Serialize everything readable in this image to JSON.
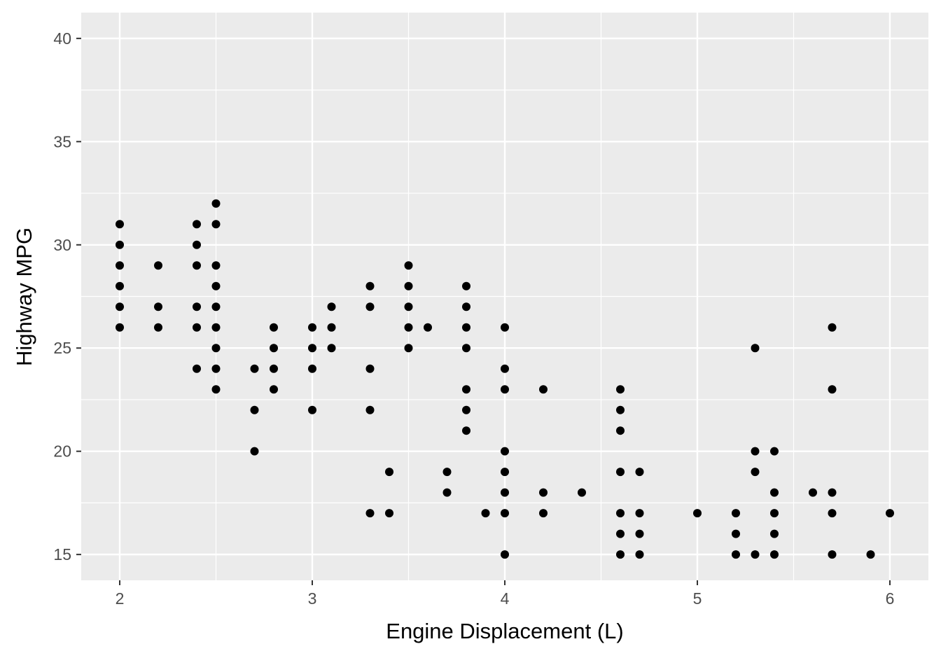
{
  "chart_data": {
    "type": "scatter",
    "title": "",
    "xlabel": "Engine Displacement (L)",
    "ylabel": "Highway MPG",
    "xlim": [
      1.8,
      6.2
    ],
    "ylim": [
      13.75,
      41.25
    ],
    "x_ticks": [
      2,
      3,
      4,
      5,
      6
    ],
    "y_ticks": [
      15,
      20,
      25,
      30,
      35,
      40
    ],
    "x_tick_labels": [
      "2",
      "3",
      "4",
      "5",
      "6"
    ],
    "y_tick_labels": [
      "15",
      "20",
      "25",
      "30",
      "35",
      "40"
    ],
    "grid": true,
    "legend": "none",
    "colors": {
      "panel": "#ebebeb",
      "grid": "#ffffff",
      "point": "#000000",
      "tick": "#333333"
    },
    "points": [
      [
        2.0,
        31
      ],
      [
        2.0,
        30
      ],
      [
        2.0,
        29
      ],
      [
        2.0,
        28
      ],
      [
        2.0,
        27
      ],
      [
        2.0,
        26
      ],
      [
        2.2,
        29
      ],
      [
        2.2,
        27
      ],
      [
        2.2,
        26
      ],
      [
        2.4,
        31
      ],
      [
        2.4,
        30
      ],
      [
        2.4,
        29
      ],
      [
        2.4,
        27
      ],
      [
        2.4,
        26
      ],
      [
        2.4,
        24
      ],
      [
        2.5,
        32
      ],
      [
        2.5,
        31
      ],
      [
        2.5,
        29
      ],
      [
        2.5,
        28
      ],
      [
        2.5,
        27
      ],
      [
        2.5,
        26
      ],
      [
        2.5,
        25
      ],
      [
        2.5,
        24
      ],
      [
        2.5,
        23
      ],
      [
        2.7,
        24
      ],
      [
        2.7,
        22
      ],
      [
        2.7,
        20
      ],
      [
        2.8,
        26
      ],
      [
        2.8,
        25
      ],
      [
        2.8,
        24
      ],
      [
        2.8,
        23
      ],
      [
        3.0,
        26
      ],
      [
        3.0,
        25
      ],
      [
        3.0,
        24
      ],
      [
        3.0,
        22
      ],
      [
        3.1,
        27
      ],
      [
        3.1,
        26
      ],
      [
        3.1,
        25
      ],
      [
        3.3,
        28
      ],
      [
        3.3,
        27
      ],
      [
        3.3,
        24
      ],
      [
        3.3,
        22
      ],
      [
        3.3,
        17
      ],
      [
        3.4,
        19
      ],
      [
        3.4,
        17
      ],
      [
        3.5,
        29
      ],
      [
        3.5,
        28
      ],
      [
        3.5,
        27
      ],
      [
        3.5,
        26
      ],
      [
        3.5,
        25
      ],
      [
        3.6,
        26
      ],
      [
        3.7,
        19
      ],
      [
        3.7,
        18
      ],
      [
        3.8,
        28
      ],
      [
        3.8,
        27
      ],
      [
        3.8,
        26
      ],
      [
        3.8,
        25
      ],
      [
        3.8,
        23
      ],
      [
        3.8,
        22
      ],
      [
        3.8,
        21
      ],
      [
        3.9,
        17
      ],
      [
        4.0,
        26
      ],
      [
        4.0,
        24
      ],
      [
        4.0,
        23
      ],
      [
        4.0,
        20
      ],
      [
        4.0,
        19
      ],
      [
        4.0,
        18
      ],
      [
        4.0,
        17
      ],
      [
        4.0,
        15
      ],
      [
        4.2,
        23
      ],
      [
        4.2,
        18
      ],
      [
        4.2,
        17
      ],
      [
        4.4,
        18
      ],
      [
        4.6,
        23
      ],
      [
        4.6,
        22
      ],
      [
        4.6,
        21
      ],
      [
        4.6,
        19
      ],
      [
        4.6,
        17
      ],
      [
        4.6,
        16
      ],
      [
        4.6,
        15
      ],
      [
        4.7,
        19
      ],
      [
        4.7,
        17
      ],
      [
        4.7,
        16
      ],
      [
        4.7,
        15
      ],
      [
        5.0,
        17
      ],
      [
        5.2,
        17
      ],
      [
        5.2,
        16
      ],
      [
        5.2,
        15
      ],
      [
        5.3,
        25
      ],
      [
        5.3,
        20
      ],
      [
        5.3,
        19
      ],
      [
        5.3,
        15
      ],
      [
        5.4,
        20
      ],
      [
        5.4,
        18
      ],
      [
        5.4,
        17
      ],
      [
        5.4,
        16
      ],
      [
        5.4,
        15
      ],
      [
        5.6,
        18
      ],
      [
        5.7,
        26
      ],
      [
        5.7,
        23
      ],
      [
        5.7,
        18
      ],
      [
        5.7,
        17
      ],
      [
        5.7,
        15
      ],
      [
        5.9,
        15
      ],
      [
        6.0,
        17
      ]
    ]
  }
}
